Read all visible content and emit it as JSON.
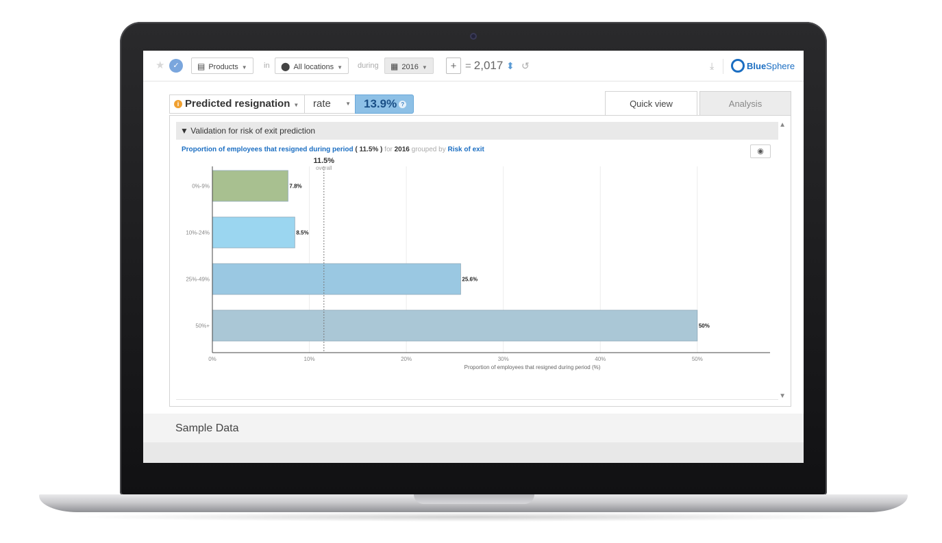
{
  "toolbar": {
    "product_label": "Products",
    "in_word": "in",
    "location_label": "All locations",
    "during_word": "during",
    "year_label": "2016",
    "plus_label": "+",
    "equals": "=",
    "total": "2,017",
    "logo_bold": "Blue",
    "logo_rest": "Sphere"
  },
  "metric": {
    "name": "Predicted resignation",
    "measure": "rate",
    "value": "13.9%"
  },
  "tabs": {
    "quick_view": "Quick view",
    "analysis": "Analysis"
  },
  "section": {
    "title": "Validation for risk of exit prediction"
  },
  "caption": {
    "metric": "Proportion of employees that resigned during period",
    "overall_value": "11.5%",
    "for_word": "for",
    "year": "2016",
    "grouped_by": "grouped by",
    "group": "Risk of exit"
  },
  "chart_data": {
    "type": "bar",
    "orientation": "horizontal",
    "categories": [
      "0%-9%",
      "10%-24%",
      "25%-49%",
      "50%+"
    ],
    "values": [
      7.8,
      8.5,
      25.6,
      50
    ],
    "value_labels": [
      "7.8%",
      "8.5%",
      "25.6%",
      "50%"
    ],
    "colors": [
      "#a8c090",
      "#9bd6f0",
      "#9ac8e2",
      "#aac7d6"
    ],
    "xlabel": "Proportion of employees that resigned during period (%)",
    "x_ticks": [
      "0%",
      "10%",
      "20%",
      "30%",
      "40%",
      "50%"
    ],
    "xlim": [
      0,
      57.5
    ],
    "reference_line": {
      "value": 11.5,
      "label": "11.5%",
      "sublabel": "overall"
    },
    "grid": true
  },
  "footer": {
    "sample_label": "Sample Data"
  },
  "icons": {
    "star": "star-icon",
    "check": "check-icon",
    "building": "building-icon",
    "location": "location-pin-icon",
    "calendar": "calendar-icon",
    "person": "person-icon",
    "undo": "undo-icon",
    "download": "download-icon",
    "eye": "eye-icon"
  }
}
